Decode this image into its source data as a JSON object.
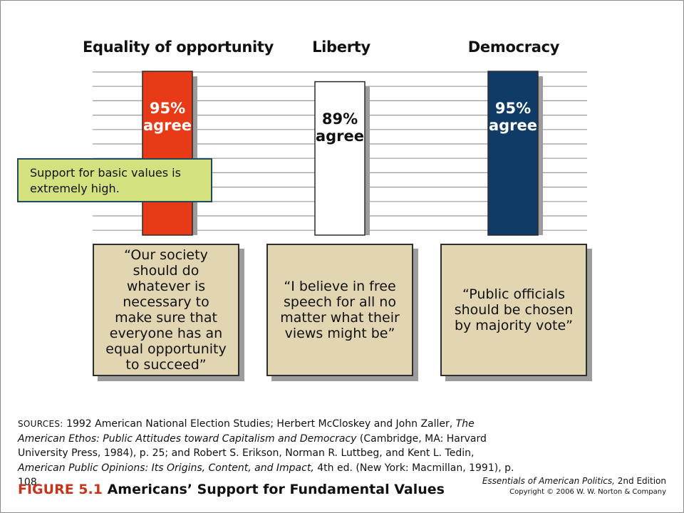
{
  "chart_data": {
    "type": "bar",
    "categories": [
      "Equality of opportunity",
      "Liberty",
      "Democracy"
    ],
    "values": [
      95,
      89,
      95
    ],
    "value_labels": [
      "95%",
      "89%",
      "95%"
    ],
    "value_suffix": "agree",
    "colors": [
      "#e83a16",
      "#ffffff",
      "#0f3b66"
    ],
    "label_colors": [
      "#ffffff",
      "#111111",
      "#ffffff"
    ],
    "ylim": [
      0,
      100
    ],
    "grid": true,
    "quotes": [
      "“Our society should do whatever is necessary to make sure that everyone has an equal opportunity to succeed”",
      "“I believe in free speech for all no matter what their views might be”",
      "“Public officials should be chosen by majority vote”"
    ],
    "callout": "Support for basic values is extremely high."
  },
  "sources": {
    "label": "SOURCES:",
    "text_1": "1992 American National Election Studies; Herbert McCloskey and John Zaller, ",
    "italic_1": "The American Ethos: Public Attitudes toward Capitalism and Democracy",
    "text_2": " (Cambridge, MA: Harvard University Press, 1984), p. 25; and Robert S. Erikson, Norman R. Luttbeg, and Kent L. Tedin, ",
    "italic_2": "American Public Opinions: Its Origins, Content, and Impact,",
    "text_3": " 4th ed. (New York: Macmillan, 1991), p. 108."
  },
  "figure": {
    "number": "FIGURE 5.1",
    "title": "Americans’ Support for Fundamental Values"
  },
  "book": {
    "title": "Essentials of American Politics,",
    "edition": "2nd Edition",
    "copyright": "Copyright © 2006 W. W. Norton & Company"
  }
}
